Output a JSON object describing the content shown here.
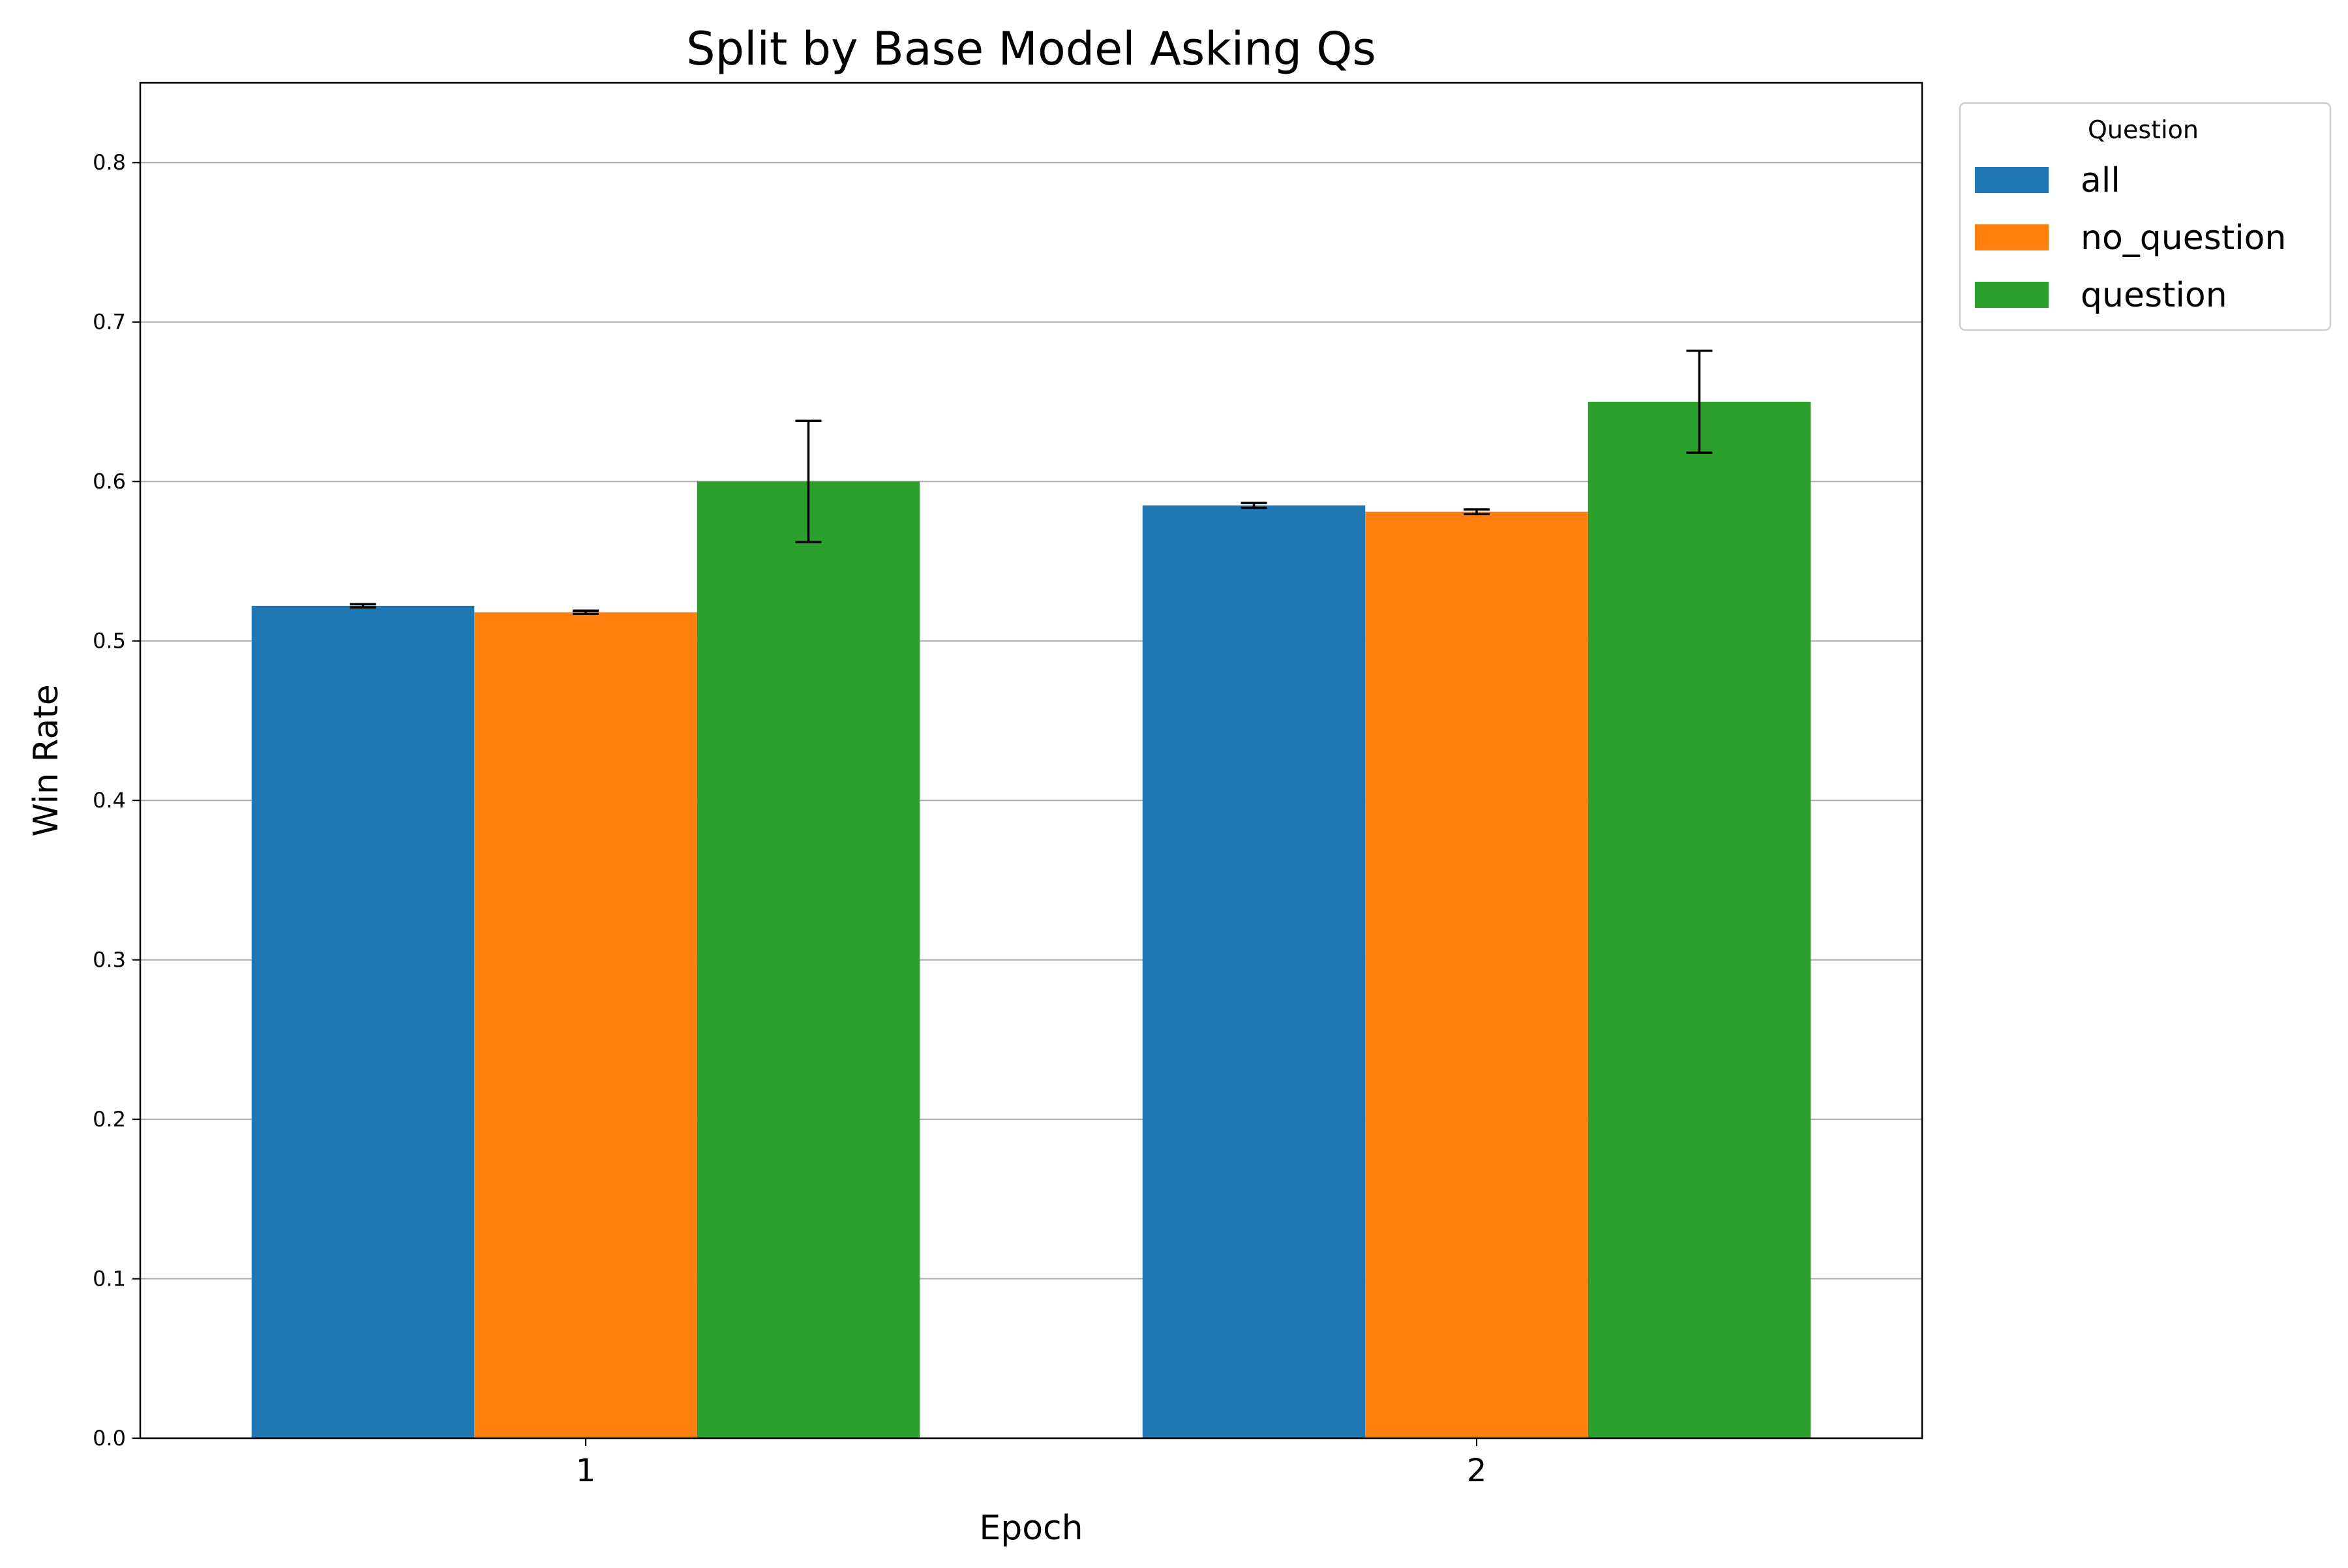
{
  "chart_data": {
    "type": "bar",
    "title": "Split by Base Model Asking Qs",
    "xlabel": "Epoch",
    "ylabel": "Win Rate",
    "categories": [
      "1",
      "2"
    ],
    "ylim": [
      0,
      0.85
    ],
    "yticks": [
      0.0,
      0.1,
      0.2,
      0.3,
      0.4,
      0.5,
      0.6,
      0.7,
      0.8
    ],
    "ytick_labels": [
      "0.0",
      "0.1",
      "0.2",
      "0.3",
      "0.4",
      "0.5",
      "0.6",
      "0.7",
      "0.8"
    ],
    "grid": "horizontal",
    "legend": {
      "title": "Question",
      "placement": "outside-upper-right"
    },
    "series": [
      {
        "name": "all",
        "color": "#1f77b4",
        "values": [
          0.522,
          0.585
        ],
        "errors": [
          0.001,
          0.0015
        ]
      },
      {
        "name": "no_question",
        "color": "#ff7f0e",
        "values": [
          0.518,
          0.581
        ],
        "errors": [
          0.001,
          0.0015
        ]
      },
      {
        "name": "question",
        "color": "#2ca02c",
        "values": [
          0.6,
          0.65
        ],
        "errors": [
          0.038,
          0.032
        ]
      }
    ]
  }
}
